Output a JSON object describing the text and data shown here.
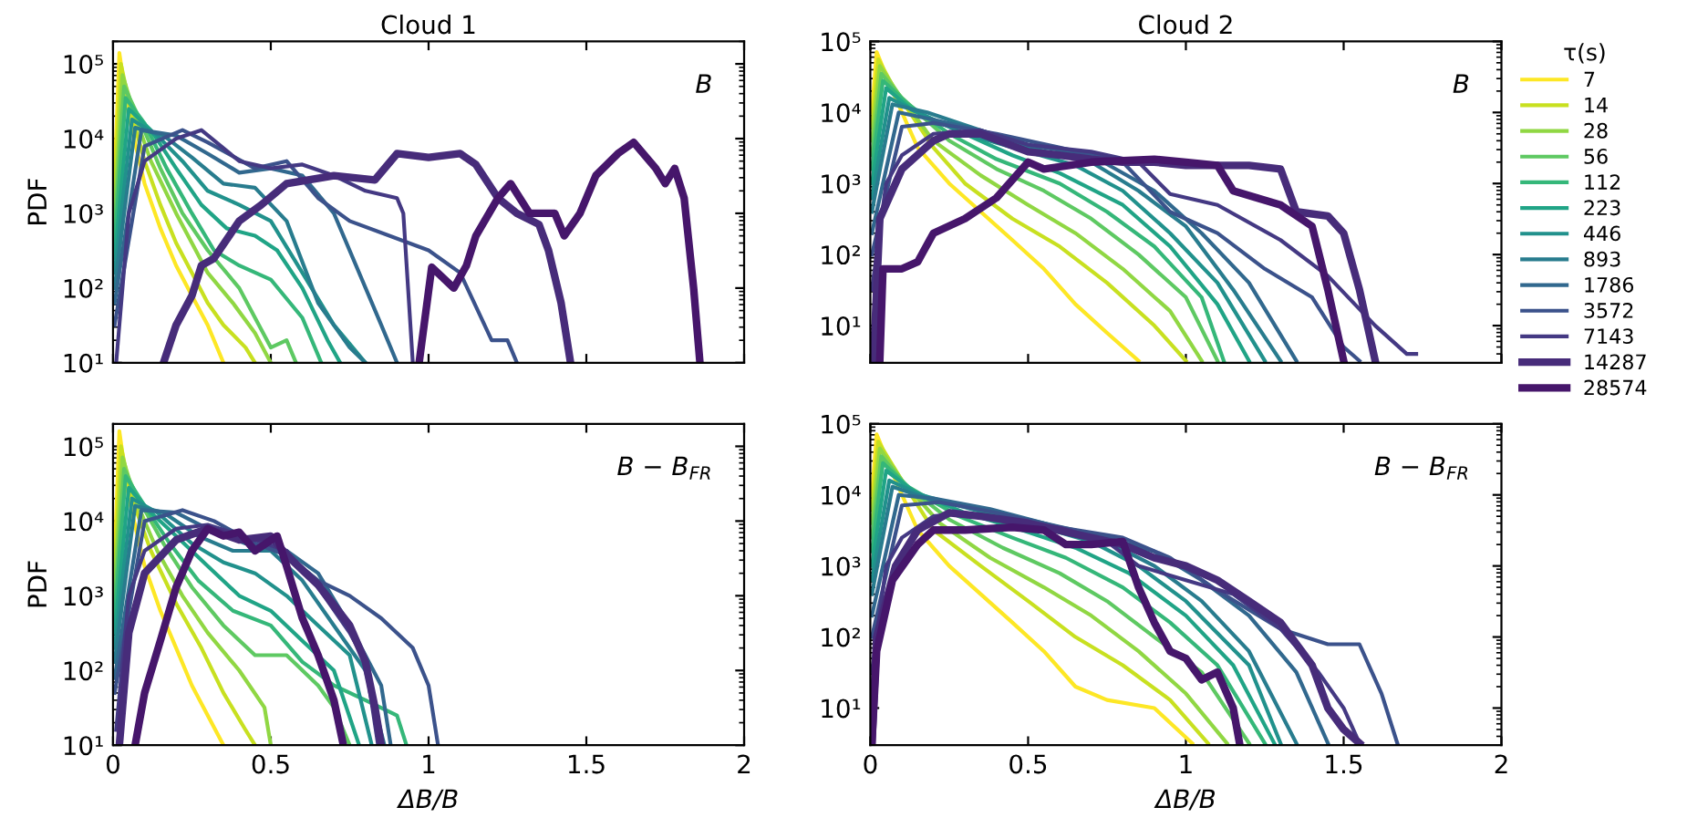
{
  "chart_data": [
    {
      "type": "line",
      "title": "Cloud 1",
      "ylabel": "PDF",
      "annotations": [
        "B"
      ],
      "log": "y",
      "xlim": [
        0,
        2
      ],
      "xticks": [
        0,
        0.5,
        1,
        1.5,
        2
      ],
      "ylim": [
        10,
        200000
      ],
      "yticks": [
        {
          "value": 10,
          "label": "10¹"
        },
        {
          "value": 100,
          "label": "10²"
        },
        {
          "value": 1000,
          "label": "10³"
        },
        {
          "value": 10000,
          "label": "10⁴"
        },
        {
          "value": 100000,
          "label": "10⁵"
        }
      ],
      "tick_labels": "y",
      "grid": false,
      "legend": false,
      "series": [
        {
          "color": "#fde725",
          "x": [
            0.005,
            0.02,
            0.05,
            0.1,
            0.15,
            0.2,
            0.25,
            0.3,
            0.35
          ],
          "values": [
            3200,
            140000,
            20000,
            2500,
            630,
            200,
            79,
            32,
            10
          ]
        },
        {
          "color": "#c8e020",
          "x": [
            0.005,
            0.025,
            0.06,
            0.1,
            0.15,
            0.2,
            0.25,
            0.3,
            0.35,
            0.42,
            0.45
          ],
          "values": [
            2000,
            100000,
            20000,
            5000,
            1300,
            400,
            160,
            63,
            32,
            16,
            10
          ]
        },
        {
          "color": "#90d743",
          "x": [
            0.005,
            0.03,
            0.07,
            0.12,
            0.2,
            0.25,
            0.3,
            0.38,
            0.45,
            0.5
          ],
          "values": [
            1000,
            71000,
            20000,
            5000,
            1000,
            400,
            160,
            63,
            25,
            10
          ]
        },
        {
          "color": "#5ec962",
          "x": [
            0.005,
            0.035,
            0.08,
            0.15,
            0.22,
            0.3,
            0.4,
            0.45,
            0.5,
            0.55,
            0.58
          ],
          "values": [
            630,
            50000,
            20000,
            4000,
            1000,
            320,
            100,
            40,
            16,
            20,
            10
          ]
        },
        {
          "color": "#35b779",
          "x": [
            0.005,
            0.04,
            0.1,
            0.17,
            0.25,
            0.32,
            0.4,
            0.5,
            0.6,
            0.66
          ],
          "values": [
            400,
            35000,
            16000,
            4000,
            1000,
            320,
            200,
            130,
            40,
            10
          ]
        },
        {
          "color": "#20a486",
          "x": [
            0.005,
            0.05,
            0.12,
            0.2,
            0.28,
            0.36,
            0.45,
            0.52,
            0.6,
            0.68,
            0.72
          ],
          "values": [
            250,
            25000,
            13000,
            4000,
            1300,
            630,
            500,
            320,
            100,
            20,
            10
          ]
        },
        {
          "color": "#21918c",
          "x": [
            0.005,
            0.06,
            0.14,
            0.22,
            0.3,
            0.4,
            0.5,
            0.6,
            0.7,
            0.8
          ],
          "values": [
            160,
            18000,
            11000,
            5000,
            2000,
            1300,
            790,
            160,
            32,
            10
          ]
        },
        {
          "color": "#287c8e",
          "x": [
            0.005,
            0.07,
            0.16,
            0.25,
            0.35,
            0.45,
            0.55,
            0.65,
            0.75,
            0.8
          ],
          "values": [
            100,
            14000,
            11000,
            5600,
            2500,
            2200,
            790,
            63,
            16,
            10
          ]
        },
        {
          "color": "#31688e",
          "x": [
            0.005,
            0.09,
            0.2,
            0.3,
            0.4,
            0.5,
            0.6,
            0.7,
            0.85,
            0.9
          ],
          "values": [
            63,
            13000,
            11000,
            6300,
            3500,
            4000,
            3200,
            1000,
            32,
            10
          ]
        },
        {
          "color": "#3b528b",
          "x": [
            0.005,
            0.1,
            0.22,
            0.3,
            0.45,
            0.55,
            0.65,
            0.75,
            1.0,
            1.1,
            1.2,
            1.25,
            1.28
          ],
          "values": [
            32,
            7900,
            13000,
            8900,
            4000,
            5000,
            1600,
            790,
            320,
            160,
            20,
            20,
            10
          ]
        },
        {
          "color": "#443983",
          "x": [
            0.01,
            0.05,
            0.1,
            0.2,
            0.28,
            0.4,
            0.5,
            0.6,
            0.7,
            0.8,
            0.9,
            0.92,
            0.95
          ],
          "values": [
            10,
            1000,
            5000,
            10000,
            13000,
            5000,
            4000,
            4500,
            3200,
            2000,
            1600,
            1000,
            10
          ]
        },
        {
          "color": "#472c7a",
          "x": [
            0.16,
            0.2,
            0.25,
            0.28,
            0.32,
            0.4,
            0.47,
            0.55,
            0.7,
            0.83,
            0.9,
            1.0,
            1.1,
            1.15,
            1.22,
            1.28,
            1.35,
            1.38,
            1.42,
            1.45
          ],
          "values": [
            10,
            32,
            79,
            200,
            250,
            790,
            1300,
            2500,
            3200,
            2800,
            6300,
            5600,
            6300,
            4500,
            1600,
            1000,
            710,
            320,
            63,
            10
          ]
        },
        {
          "color": "#46166b",
          "x": [
            0.97,
            1.01,
            1.08,
            1.12,
            1.15,
            1.22,
            1.26,
            1.32,
            1.4,
            1.43,
            1.48,
            1.53,
            1.6,
            1.65,
            1.72,
            1.75,
            1.78,
            1.81,
            1.84,
            1.86
          ],
          "values": [
            10,
            190,
            100,
            200,
            500,
            1600,
            2500,
            1000,
            1000,
            500,
            1000,
            3200,
            6300,
            8900,
            4000,
            2500,
            4000,
            1600,
            100,
            10
          ]
        }
      ]
    },
    {
      "type": "line",
      "title": "Cloud 2",
      "annotations": [
        "B"
      ],
      "log": "y",
      "xlim": [
        0,
        2
      ],
      "xticks": [
        0,
        0.5,
        1,
        1.5,
        2
      ],
      "ylim": [
        3,
        100000
      ],
      "yticks": [
        {
          "value": 10,
          "label": "10¹"
        },
        {
          "value": 100,
          "label": "10²"
        },
        {
          "value": 1000,
          "label": "10³"
        },
        {
          "value": 10000,
          "label": "10⁴"
        },
        {
          "value": 100000,
          "label": "10⁵"
        }
      ],
      "tick_labels": "y",
      "grid": false,
      "legend": "right",
      "legend_title": "τ(s)",
      "series": [
        {
          "name": "7",
          "color": "#fde725",
          "x": [
            0.005,
            0.02,
            0.07,
            0.15,
            0.25,
            0.35,
            0.45,
            0.55,
            0.65,
            0.75,
            0.85
          ],
          "values": [
            10000,
            71000,
            20000,
            3200,
            1000,
            400,
            160,
            63,
            20,
            7.9,
            3.2
          ]
        },
        {
          "name": "14",
          "color": "#c8e020",
          "x": [
            0.005,
            0.025,
            0.08,
            0.2,
            0.3,
            0.45,
            0.6,
            0.75,
            0.9,
            1.0
          ],
          "values": [
            6300,
            56000,
            20000,
            3200,
            1000,
            320,
            130,
            40,
            10,
            3.2
          ]
        },
        {
          "name": "28",
          "color": "#90d743",
          "x": [
            0.005,
            0.03,
            0.09,
            0.2,
            0.35,
            0.5,
            0.65,
            0.8,
            0.95,
            1.05
          ],
          "values": [
            4000,
            45000,
            18000,
            4000,
            1300,
            500,
            200,
            63,
            16,
            3.2
          ]
        },
        {
          "name": "56",
          "color": "#5ec962",
          "x": [
            0.005,
            0.035,
            0.1,
            0.25,
            0.4,
            0.55,
            0.7,
            0.85,
            1.0,
            1.1
          ],
          "values": [
            2500,
            35000,
            16000,
            4000,
            1600,
            790,
            320,
            100,
            25,
            3.2
          ]
        },
        {
          "name": "112",
          "color": "#35b779",
          "x": [
            0.005,
            0.04,
            0.12,
            0.25,
            0.4,
            0.6,
            0.75,
            0.9,
            1.05,
            1.12
          ],
          "values": [
            1600,
            28000,
            13000,
            5000,
            2200,
            1000,
            400,
            130,
            25,
            3.2
          ]
        },
        {
          "name": "223",
          "color": "#20a486",
          "x": [
            0.005,
            0.05,
            0.13,
            0.3,
            0.45,
            0.6,
            0.8,
            0.95,
            1.1,
            1.2
          ],
          "values": [
            1000,
            22000,
            11000,
            5000,
            2500,
            1400,
            500,
            130,
            20,
            3.2
          ]
        },
        {
          "name": "446",
          "color": "#21918c",
          "x": [
            0.005,
            0.06,
            0.15,
            0.3,
            0.5,
            0.65,
            0.8,
            0.95,
            1.1,
            1.25
          ],
          "values": [
            630,
            16000,
            10000,
            5000,
            2800,
            1800,
            790,
            200,
            40,
            3.2
          ]
        },
        {
          "name": "893",
          "color": "#287c8e",
          "x": [
            0.005,
            0.07,
            0.18,
            0.35,
            0.5,
            0.7,
            0.85,
            1.0,
            1.15,
            1.3
          ],
          "values": [
            400,
            13000,
            10000,
            5600,
            3200,
            2000,
            790,
            250,
            32,
            3.2
          ]
        },
        {
          "name": "1786",
          "color": "#31688e",
          "x": [
            0.005,
            0.09,
            0.2,
            0.35,
            0.5,
            0.7,
            0.9,
            1.05,
            1.2,
            1.35
          ],
          "values": [
            200,
            10000,
            7900,
            5600,
            3500,
            2500,
            790,
            200,
            40,
            3.2
          ]
        },
        {
          "name": "3572",
          "color": "#3b528b",
          "x": [
            0.005,
            0.1,
            0.2,
            0.4,
            0.6,
            0.8,
            0.95,
            1.1,
            1.25,
            1.4,
            1.5,
            1.55
          ],
          "values": [
            100,
            6300,
            7100,
            5000,
            3200,
            2000,
            400,
            200,
            63,
            25,
            5,
            3.2
          ]
        },
        {
          "name": "7143",
          "color": "#443983",
          "x": [
            0.005,
            0.05,
            0.1,
            0.2,
            0.35,
            0.5,
            0.7,
            0.85,
            0.95,
            1.1,
            1.3,
            1.45,
            1.6,
            1.7,
            1.73
          ],
          "values": [
            32,
            1000,
            2500,
            5000,
            5600,
            3500,
            2800,
            2000,
            710,
            500,
            160,
            50,
            10,
            4,
            4
          ]
        },
        {
          "name": "14287",
          "color": "#472c7a",
          "x": [
            0.01,
            0.03,
            0.1,
            0.2,
            0.25,
            0.35,
            0.5,
            0.6,
            0.7,
            0.8,
            0.9,
            1.0,
            1.1,
            1.2,
            1.3,
            1.35,
            1.45,
            1.5,
            1.55,
            1.6
          ],
          "values": [
            3.2,
            320,
            1600,
            4000,
            5000,
            5000,
            2800,
            2500,
            2200,
            2000,
            2000,
            1800,
            1800,
            1800,
            1600,
            400,
            350,
            200,
            32,
            3.2
          ]
        },
        {
          "name": "28574",
          "color": "#46166b",
          "x": [
            0.03,
            0.04,
            0.1,
            0.15,
            0.2,
            0.3,
            0.4,
            0.5,
            0.55,
            0.7,
            0.9,
            1.0,
            1.1,
            1.15,
            1.3,
            1.4,
            1.45,
            1.5
          ],
          "values": [
            3.2,
            63,
            63,
            79,
            200,
            320,
            630,
            2000,
            1600,
            2000,
            2200,
            2000,
            1800,
            790,
            500,
            250,
            32,
            3.2
          ]
        }
      ]
    },
    {
      "type": "line",
      "xlabel": "ΔB/B",
      "ylabel": "PDF",
      "annotations": [
        "B − B$_{FR}$"
      ],
      "log": "y",
      "xlim": [
        0,
        2
      ],
      "xticks": [
        0,
        0.5,
        1,
        1.5,
        2
      ],
      "ylim": [
        10,
        200000
      ],
      "yticks": [
        {
          "value": 10,
          "label": "10¹"
        },
        {
          "value": 100,
          "label": "10²"
        },
        {
          "value": 1000,
          "label": "10³"
        },
        {
          "value": 10000,
          "label": "10⁴"
        },
        {
          "value": 100000,
          "label": "10⁵"
        }
      ],
      "grid": false,
      "legend": false,
      "series": [
        {
          "color": "#fde725",
          "x": [
            0.005,
            0.02,
            0.05,
            0.1,
            0.15,
            0.2,
            0.25,
            0.3,
            0.35
          ],
          "values": [
            3200,
            160000,
            20000,
            2500,
            630,
            200,
            63,
            25,
            10
          ]
        },
        {
          "color": "#c8e020",
          "x": [
            0.005,
            0.025,
            0.06,
            0.12,
            0.2,
            0.28,
            0.35,
            0.42,
            0.45
          ],
          "values": [
            2000,
            100000,
            20000,
            4000,
            790,
            200,
            50,
            16,
            10
          ]
        },
        {
          "color": "#90d743",
          "x": [
            0.005,
            0.03,
            0.07,
            0.14,
            0.22,
            0.3,
            0.4,
            0.48,
            0.5
          ],
          "values": [
            1300,
            71000,
            20000,
            4000,
            1000,
            320,
            100,
            32,
            10
          ]
        },
        {
          "color": "#5ec962",
          "x": [
            0.005,
            0.035,
            0.08,
            0.16,
            0.25,
            0.35,
            0.45,
            0.55,
            0.65,
            0.7,
            0.75
          ],
          "values": [
            790,
            50000,
            20000,
            5000,
            1300,
            400,
            160,
            160,
            63,
            32,
            10
          ]
        },
        {
          "color": "#35b779",
          "x": [
            0.005,
            0.04,
            0.1,
            0.18,
            0.27,
            0.38,
            0.5,
            0.6,
            0.7,
            0.8,
            0.9,
            0.93
          ],
          "values": [
            500,
            40000,
            16000,
            5000,
            1600,
            630,
            400,
            130,
            63,
            40,
            25,
            10
          ]
        },
        {
          "color": "#20a486",
          "x": [
            0.005,
            0.05,
            0.12,
            0.2,
            0.3,
            0.4,
            0.5,
            0.6,
            0.7,
            0.78
          ],
          "values": [
            320,
            28000,
            13000,
            6300,
            2500,
            1000,
            630,
            250,
            100,
            10
          ]
        },
        {
          "color": "#21918c",
          "x": [
            0.005,
            0.06,
            0.14,
            0.25,
            0.35,
            0.45,
            0.55,
            0.65,
            0.75,
            0.82
          ],
          "values": [
            200,
            20000,
            13000,
            5000,
            2800,
            2000,
            1000,
            400,
            160,
            10
          ]
        },
        {
          "color": "#287c8e",
          "x": [
            0.005,
            0.07,
            0.16,
            0.27,
            0.38,
            0.5,
            0.6,
            0.7,
            0.8,
            0.86
          ],
          "values": [
            130,
            16000,
            13000,
            6300,
            4000,
            4000,
            1600,
            400,
            100,
            10
          ]
        },
        {
          "color": "#31688e",
          "x": [
            0.005,
            0.09,
            0.2,
            0.3,
            0.42,
            0.55,
            0.65,
            0.75,
            0.85,
            0.88
          ],
          "values": [
            79,
            14000,
            13000,
            7900,
            5000,
            4000,
            2000,
            400,
            63,
            10
          ]
        },
        {
          "color": "#3b528b",
          "x": [
            0.005,
            0.1,
            0.22,
            0.32,
            0.45,
            0.55,
            0.65,
            0.75,
            0.85,
            0.95,
            1.0,
            1.03
          ],
          "values": [
            50,
            10000,
            14000,
            10000,
            5000,
            3500,
            1600,
            1000,
            500,
            200,
            63,
            10
          ]
        },
        {
          "color": "#443983",
          "x": [
            0.01,
            0.05,
            0.1,
            0.2,
            0.3,
            0.45,
            0.55,
            0.65,
            0.75,
            0.8,
            0.84
          ],
          "values": [
            16,
            1000,
            4000,
            7900,
            8900,
            5600,
            4000,
            1300,
            320,
            130,
            10
          ]
        },
        {
          "color": "#472c7a",
          "x": [
            0.02,
            0.05,
            0.1,
            0.2,
            0.3,
            0.4,
            0.5,
            0.55,
            0.65,
            0.75,
            0.8,
            0.83,
            0.85
          ],
          "values": [
            10,
            320,
            2000,
            5600,
            7900,
            5600,
            6300,
            3500,
            1400,
            400,
            130,
            32,
            10
          ]
        },
        {
          "color": "#46166b",
          "x": [
            0.07,
            0.1,
            0.15,
            0.2,
            0.25,
            0.3,
            0.35,
            0.4,
            0.45,
            0.52,
            0.55,
            0.6,
            0.65,
            0.7,
            0.73
          ],
          "values": [
            10,
            50,
            250,
            1300,
            4000,
            7900,
            6300,
            7100,
            4000,
            6300,
            2500,
            500,
            160,
            40,
            10
          ]
        }
      ]
    },
    {
      "type": "line",
      "xlabel": "ΔB/B",
      "annotations": [
        "B − B$_{FR}$"
      ],
      "log": "y",
      "xlim": [
        0,
        2
      ],
      "xticks": [
        0,
        0.5,
        1,
        1.5,
        2
      ],
      "ylim": [
        3,
        100000
      ],
      "yticks": [
        {
          "value": 10,
          "label": "10¹"
        },
        {
          "value": 100,
          "label": "10²"
        },
        {
          "value": 1000,
          "label": "10³"
        },
        {
          "value": 10000,
          "label": "10⁴"
        },
        {
          "value": 100000,
          "label": "10⁵"
        }
      ],
      "grid": false,
      "legend": false,
      "series": [
        {
          "color": "#fde725",
          "x": [
            0.005,
            0.02,
            0.08,
            0.15,
            0.25,
            0.35,
            0.45,
            0.55,
            0.65,
            0.75,
            0.9,
            1.02
          ],
          "values": [
            10000,
            71000,
            16000,
            3200,
            1000,
            400,
            160,
            63,
            20,
            13,
            10,
            3.2
          ]
        },
        {
          "color": "#c8e020",
          "x": [
            0.005,
            0.025,
            0.1,
            0.2,
            0.35,
            0.5,
            0.65,
            0.8,
            0.95,
            1.07
          ],
          "values": [
            6300,
            56000,
            16000,
            3200,
            1000,
            320,
            100,
            40,
            13,
            3.2
          ]
        },
        {
          "color": "#90d743",
          "x": [
            0.005,
            0.03,
            0.1,
            0.22,
            0.38,
            0.55,
            0.7,
            0.85,
            1.0,
            1.13
          ],
          "values": [
            4000,
            45000,
            16000,
            4000,
            1300,
            500,
            200,
            63,
            16,
            3.2
          ]
        },
        {
          "color": "#5ec962",
          "x": [
            0.005,
            0.035,
            0.11,
            0.25,
            0.42,
            0.6,
            0.75,
            0.9,
            1.05,
            1.2
          ],
          "values": [
            2500,
            35000,
            14000,
            4500,
            1800,
            790,
            320,
            100,
            32,
            3.2
          ]
        },
        {
          "color": "#35b779",
          "x": [
            0.005,
            0.04,
            0.12,
            0.28,
            0.45,
            0.62,
            0.8,
            0.95,
            1.1,
            1.25
          ],
          "values": [
            1600,
            28000,
            13000,
            5000,
            2500,
            1300,
            500,
            160,
            40,
            3.2
          ]
        },
        {
          "color": "#20a486",
          "x": [
            0.005,
            0.05,
            0.14,
            0.3,
            0.48,
            0.65,
            0.82,
            1.0,
            1.15,
            1.28
          ],
          "values": [
            1000,
            22000,
            11000,
            5600,
            3200,
            1800,
            790,
            200,
            40,
            3.2
          ]
        },
        {
          "color": "#21918c",
          "x": [
            0.005,
            0.06,
            0.16,
            0.32,
            0.5,
            0.7,
            0.85,
            1.0,
            1.2,
            1.3
          ],
          "values": [
            630,
            16000,
            10000,
            6300,
            4000,
            2200,
            1000,
            320,
            40,
            3.2
          ]
        },
        {
          "color": "#287c8e",
          "x": [
            0.005,
            0.07,
            0.18,
            0.35,
            0.55,
            0.75,
            0.9,
            1.05,
            1.2,
            1.35
          ],
          "values": [
            400,
            13000,
            8900,
            6300,
            4000,
            2200,
            1000,
            320,
            63,
            3.2
          ]
        },
        {
          "color": "#31688e",
          "x": [
            0.005,
            0.09,
            0.2,
            0.38,
            0.55,
            0.75,
            0.9,
            1.05,
            1.2,
            1.35,
            1.45
          ],
          "values": [
            200,
            10000,
            8900,
            6300,
            4000,
            2500,
            1600,
            630,
            200,
            32,
            3.2
          ]
        },
        {
          "color": "#3b528b",
          "x": [
            0.005,
            0.1,
            0.22,
            0.4,
            0.6,
            0.8,
            0.95,
            1.1,
            1.3,
            1.45,
            1.55,
            1.62,
            1.67
          ],
          "values": [
            100,
            7100,
            7900,
            5600,
            3500,
            2500,
            1300,
            450,
            130,
            79,
            79,
            16,
            3.2
          ]
        },
        {
          "color": "#443983",
          "x": [
            0.005,
            0.05,
            0.1,
            0.2,
            0.3,
            0.45,
            0.6,
            0.75,
            0.85,
            1.0,
            1.15,
            1.3,
            1.42,
            1.5,
            1.55
          ],
          "values": [
            32,
            1000,
            2500,
            5000,
            5600,
            4000,
            3500,
            2200,
            1000,
            630,
            400,
            130,
            32,
            10,
            3.2
          ]
        },
        {
          "color": "#472c7a",
          "x": [
            0.005,
            0.02,
            0.08,
            0.15,
            0.25,
            0.35,
            0.5,
            0.65,
            0.8,
            0.9,
            1.0,
            1.1,
            1.2,
            1.3,
            1.4,
            1.45,
            1.5,
            1.55
          ],
          "values": [
            3.2,
            100,
            1000,
            3200,
            5600,
            5000,
            4000,
            2800,
            2000,
            1300,
            1000,
            630,
            320,
            160,
            40,
            10,
            5,
            3.2
          ]
        },
        {
          "color": "#46166b",
          "x": [
            0.005,
            0.02,
            0.07,
            0.15,
            0.2,
            0.3,
            0.45,
            0.55,
            0.62,
            0.7,
            0.8,
            0.85,
            0.9,
            0.95,
            1.0,
            1.05,
            1.1,
            1.15,
            1.17
          ],
          "values": [
            3.2,
            63,
            630,
            2000,
            3200,
            3200,
            3500,
            3200,
            2000,
            2000,
            2200,
            500,
            160,
            63,
            50,
            25,
            32,
            10,
            3.2
          ]
        }
      ]
    }
  ]
}
